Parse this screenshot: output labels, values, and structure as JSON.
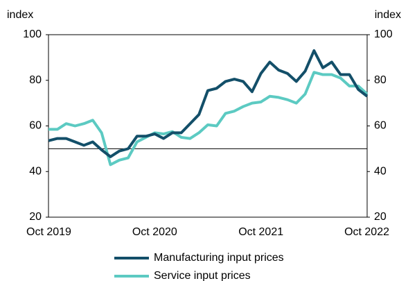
{
  "chart_data": {
    "type": "line",
    "y_axis_label": "index",
    "y2_axis_label": "index",
    "categories": [
      "Oct 2019",
      null,
      null,
      null,
      null,
      null,
      null,
      null,
      null,
      null,
      null,
      null,
      "Oct 2020",
      null,
      null,
      null,
      null,
      null,
      null,
      null,
      null,
      null,
      null,
      null,
      "Oct 2021",
      null,
      null,
      null,
      null,
      null,
      null,
      null,
      null,
      null,
      null,
      null,
      "Oct 2022"
    ],
    "series": [
      {
        "name": "Manufacturing input prices",
        "color": "#134f69",
        "values": [
          53.5,
          54.5,
          54.5,
          53,
          51.5,
          53,
          49.5,
          46.5,
          49,
          50,
          55.5,
          55.5,
          56.5,
          54.5,
          57,
          57,
          61,
          65,
          75.5,
          76.5,
          79.5,
          80.5,
          79.5,
          75,
          83,
          88,
          84.5,
          83,
          79.5,
          84,
          93,
          85.5,
          88,
          82.5,
          82.5,
          76,
          73
        ]
      },
      {
        "name": "Service input prices",
        "color": "#5ccac2",
        "values": [
          58.5,
          58.5,
          61,
          60,
          61,
          62.5,
          57,
          43,
          45,
          46,
          53,
          55,
          57,
          56.5,
          57.5,
          55,
          54.5,
          57,
          60.5,
          60,
          65.5,
          66.5,
          68.5,
          70,
          70.5,
          73,
          72.5,
          71.5,
          70,
          74,
          83.5,
          82.5,
          82.5,
          81,
          77.5,
          77.5,
          74
        ]
      }
    ],
    "reference_line": 50,
    "ylim": [
      20,
      100
    ],
    "yticks": [
      20,
      40,
      60,
      80,
      100
    ],
    "y2lim": [
      20,
      100
    ],
    "y2ticks": [
      20,
      40,
      60,
      80,
      100
    ],
    "legend": "bottom"
  }
}
